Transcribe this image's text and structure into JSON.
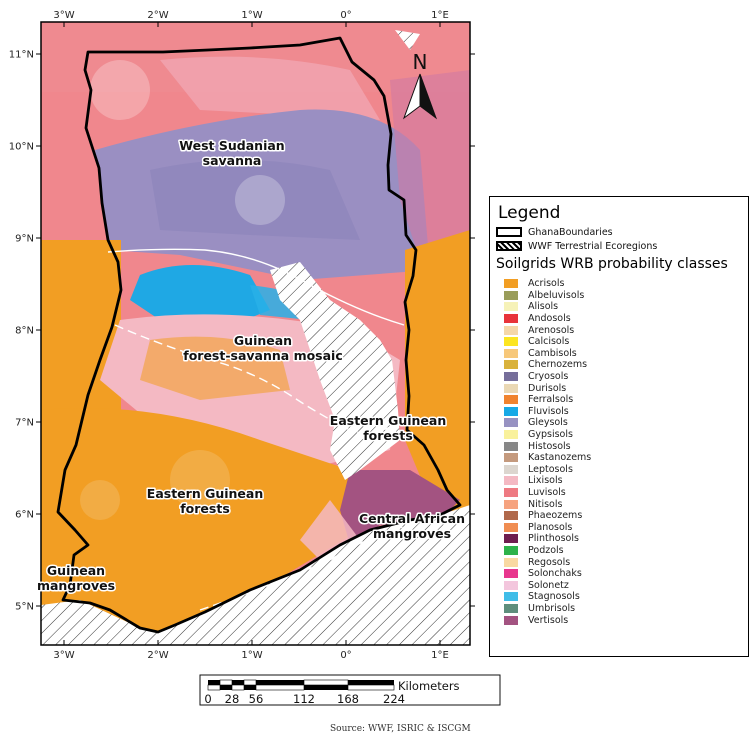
{
  "map": {
    "lon_ticks": [
      {
        "label": "3°W",
        "lon": -3
      },
      {
        "label": "2°W",
        "lon": -2
      },
      {
        "label": "1°W",
        "lon": -1
      },
      {
        "label": "0°",
        "lon": 0
      },
      {
        "label": "1°E",
        "lon": 1
      }
    ],
    "lat_ticks": [
      {
        "label": "11°N",
        "lat": 11
      },
      {
        "label": "10°N",
        "lat": 10
      },
      {
        "label": "9°N",
        "lat": 9
      },
      {
        "label": "8°N",
        "lat": 8
      },
      {
        "label": "7°N",
        "lat": 7
      },
      {
        "label": "6°N",
        "lat": 6
      },
      {
        "label": "5°N",
        "lat": 5
      }
    ],
    "north_label": "N",
    "ecoregions": [
      {
        "lines": [
          "West Sudanian",
          "savanna"
        ]
      },
      {
        "lines": [
          "Guinean",
          "forest-savanna mosaic"
        ]
      },
      {
        "lines": [
          "Eastern Guinean",
          "forests"
        ]
      },
      {
        "lines": [
          "Eastern Guinean",
          "forests"
        ]
      },
      {
        "lines": [
          "Central African",
          "mangroves"
        ]
      },
      {
        "lines": [
          "Guinean",
          "mangroves"
        ]
      }
    ]
  },
  "legend": {
    "title": "Legend",
    "boundaries_label": "GhanaBoundaries",
    "ecoregions_label": "WWF Terrestrial Ecoregions",
    "soil_title": "Soilgrids WRB probability classes",
    "classes": [
      {
        "name": "Acrisols",
        "color": "#f29e23"
      },
      {
        "name": "Albeluvisols",
        "color": "#9a9d5a"
      },
      {
        "name": "Alisols",
        "color": "#f6f2b8"
      },
      {
        "name": "Andosols",
        "color": "#e8333a"
      },
      {
        "name": "Arenosols",
        "color": "#f5d7a8"
      },
      {
        "name": "Calcisols",
        "color": "#fce520"
      },
      {
        "name": "Cambisols",
        "color": "#f7c87a"
      },
      {
        "name": "Chernozems",
        "color": "#d9b23c"
      },
      {
        "name": "Cryosols",
        "color": "#766e9a"
      },
      {
        "name": "Durisols",
        "color": "#ead8b4"
      },
      {
        "name": "Ferralsols",
        "color": "#f0832f"
      },
      {
        "name": "Fluvisols",
        "color": "#17a9e6"
      },
      {
        "name": "Gleysols",
        "color": "#9792c2"
      },
      {
        "name": "Gypsisols",
        "color": "#f9f19c"
      },
      {
        "name": "Histosols",
        "color": "#878787"
      },
      {
        "name": "Kastanozems",
        "color": "#c49a7e"
      },
      {
        "name": "Leptosols",
        "color": "#dcd6cf"
      },
      {
        "name": "Lixisols",
        "color": "#f4b9c3"
      },
      {
        "name": "Luvisols",
        "color": "#ee7a82"
      },
      {
        "name": "Nitisols",
        "color": "#f6a37f"
      },
      {
        "name": "Phaeozems",
        "color": "#b0684b"
      },
      {
        "name": "Planosols",
        "color": "#f08d52"
      },
      {
        "name": "Plinthosols",
        "color": "#6e1d4f"
      },
      {
        "name": "Podzols",
        "color": "#2db24a"
      },
      {
        "name": "Regosols",
        "color": "#f9d9a2"
      },
      {
        "name": "Solonchaks",
        "color": "#e8368e"
      },
      {
        "name": "Solonetz",
        "color": "#f3c6dd"
      },
      {
        "name": "Stagnosols",
        "color": "#3fbde8"
      },
      {
        "name": "Umbrisols",
        "color": "#5e8e7c"
      },
      {
        "name": "Vertisols",
        "color": "#a35381"
      }
    ]
  },
  "scale_bar": {
    "unit": "Kilometers",
    "ticks": [
      "0",
      "28",
      "56",
      "112",
      "168",
      "224"
    ]
  },
  "source": "Source: WWF, ISRIC & ISCGM"
}
